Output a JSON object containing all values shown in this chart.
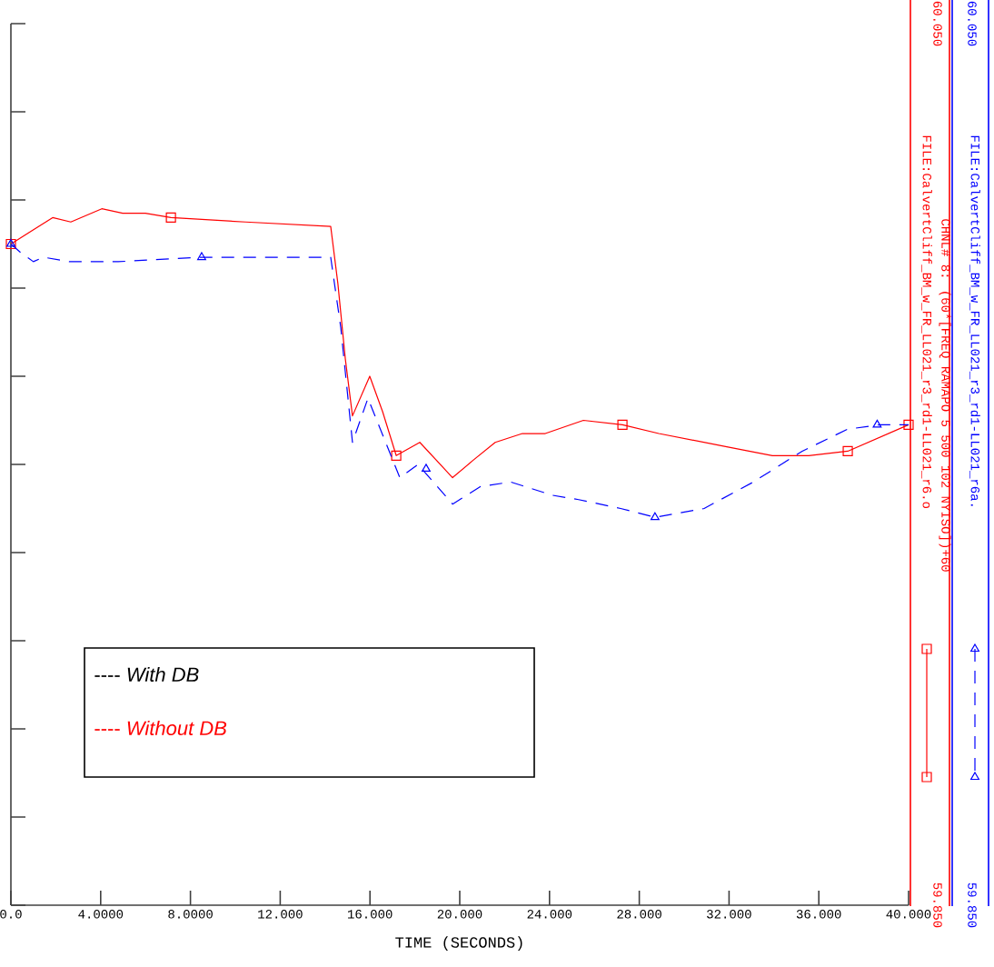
{
  "chart_data": {
    "type": "line",
    "xlabel": "TIME  (SECONDS)",
    "xlim": [
      0,
      40
    ],
    "xticks": [
      {
        "value": 0,
        "label": "0.0"
      },
      {
        "value": 4,
        "label": "4.0000"
      },
      {
        "value": 8,
        "label": "8.0000"
      },
      {
        "value": 12,
        "label": "12.000"
      },
      {
        "value": 16,
        "label": "16.000"
      },
      {
        "value": 20,
        "label": "20.000"
      },
      {
        "value": 24,
        "label": "24.000"
      },
      {
        "value": 28,
        "label": "28.000"
      },
      {
        "value": 32,
        "label": "32.000"
      },
      {
        "value": 36,
        "label": "36.000"
      },
      {
        "value": 40,
        "label": "40.000"
      }
    ],
    "ylim": [
      59.85,
      60.05
    ],
    "yticks": [
      {
        "value": 59.85,
        "label": "59.850"
      },
      {
        "value": 59.87,
        "label": null
      },
      {
        "value": 59.89,
        "label": null
      },
      {
        "value": 59.91,
        "label": null
      },
      {
        "value": 59.93,
        "label": null
      },
      {
        "value": 59.95,
        "label": null
      },
      {
        "value": 59.97,
        "label": null
      },
      {
        "value": 59.99,
        "label": null
      },
      {
        "value": 60.01,
        "label": null
      },
      {
        "value": 60.03,
        "label": null
      },
      {
        "value": 60.05,
        "label": "60.050"
      }
    ],
    "y2lim": [
      59.85,
      60.05
    ],
    "y2ticks": [
      {
        "value": 59.85,
        "label": "59.850"
      },
      {
        "value": 60.05,
        "label": "60.050"
      }
    ],
    "grid": false,
    "legend": "right",
    "series": [
      {
        "name": "FILE:CalvertCliff_BM_w_FR_LL021_r3_rd1-LL021_r6.o",
        "color": "#ff0000",
        "line_style": "solid",
        "x": [
          0,
          1.86,
          2.67,
          4.05,
          4.98,
          5.99,
          7.13,
          10.45,
          14.25,
          14.57,
          14.9,
          15.22,
          15.99,
          16.56,
          17.17,
          18.22,
          19.68,
          20.61,
          21.58,
          22.79,
          23.81,
          25.51,
          27.25,
          28.87,
          31.9,
          33.93,
          35.55,
          37.29,
          40
        ],
        "values": [
          60.0,
          60.006,
          60.005,
          60.008,
          60.007,
          60.007,
          60.006,
          60.005,
          60.004,
          59.991,
          59.974,
          59.961,
          59.97,
          59.962,
          59.952,
          59.955,
          59.947,
          59.951,
          59.955,
          59.957,
          59.957,
          59.96,
          59.959,
          59.957,
          59.954,
          59.952,
          59.952,
          59.953,
          59.959
        ]
      },
      {
        "name": "FILE:CalvertCliff_BM_w_FR_LL021_r3_rd1-LL021_r6a.",
        "color": "#0000ff",
        "line_style": "dashed",
        "axis": "y2",
        "x": [
          0,
          0.45,
          1.0,
          1.46,
          2.6,
          4.78,
          8.5,
          14.25,
          14.7,
          15.22,
          15.91,
          17.33,
          18.14,
          19.68,
          20.93,
          22.27,
          24.13,
          25.3,
          27.17,
          28.7,
          30.89,
          33.08,
          35.26,
          37.29,
          38.75,
          40
        ],
        "values": [
          60.0,
          59.998,
          59.996,
          59.997,
          59.996,
          59.996,
          59.997,
          59.997,
          59.981,
          59.955,
          59.965,
          59.947,
          59.95,
          59.941,
          59.945,
          59.946,
          59.943,
          59.942,
          59.94,
          59.938,
          59.94,
          59.946,
          59.953,
          59.958,
          59.959,
          59.959
        ]
      },
      {
        "type": "scatter",
        "color": "#ff0000",
        "marker": "square",
        "x": [
          0,
          7.13,
          17.17,
          27.25,
          37.29,
          40
        ],
        "values": [
          60.0,
          60.006,
          59.952,
          59.959,
          59.953,
          59.959
        ]
      },
      {
        "type": "scatter",
        "color": "#0000ff",
        "marker": "triangle",
        "axis": "y2",
        "x": [
          0,
          8.5,
          18.5,
          28.7,
          38.6
        ],
        "values": [
          60.0,
          59.997,
          59.949,
          59.938,
          59.959
        ]
      }
    ],
    "annotations": [
      "CHNL# 8: (60*[FREQ RAMAPO 5 500 102 NYISO])+60",
      "---- *With DB*",
      "---- *Without DB*"
    ]
  }
}
